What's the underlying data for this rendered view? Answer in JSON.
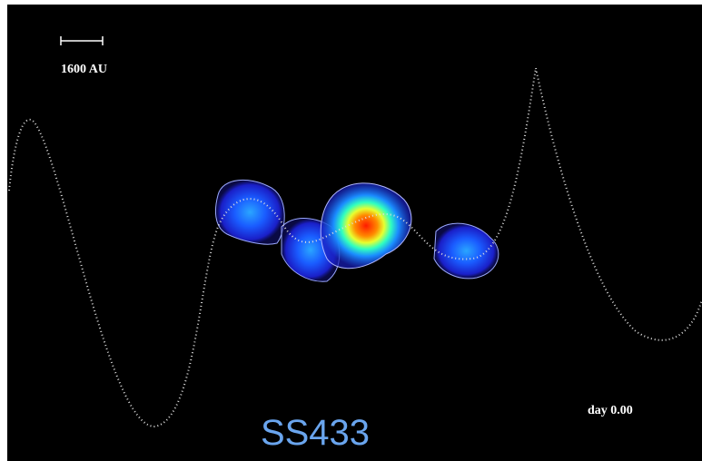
{
  "scale_bar": {
    "label": "1600 AU"
  },
  "time_label": "day 0.00",
  "caption": "SS433"
}
